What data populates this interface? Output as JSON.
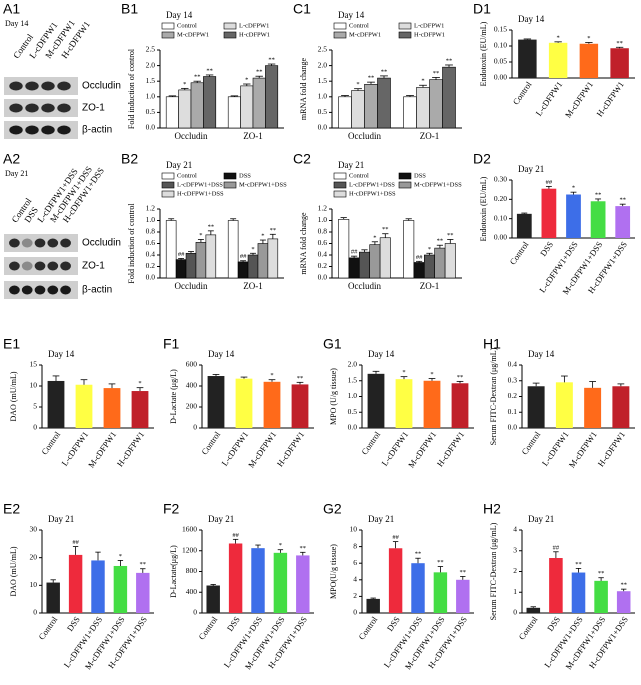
{
  "blots": [
    {
      "panel": "A1",
      "title": "Day 14",
      "lanes": [
        "Control",
        "L-cDFPW1",
        "M-cDFPW1",
        "H-cDFPW1"
      ],
      "bands": [
        "Occludin",
        "ZO-1",
        "β-actin"
      ]
    },
    {
      "panel": "A2",
      "title": "Day 21",
      "lanes": [
        "Control",
        "DSS",
        "L-cDFPW1+DSS",
        "M-cDFPW1+DSS",
        "H-cDFPW1+DSS"
      ],
      "bands": [
        "Occludin",
        "ZO-1",
        "β-actin"
      ]
    }
  ],
  "chart_data": [
    {
      "type": "bar",
      "panel": "B1",
      "title": "Day 14",
      "ylabel": "Fold induction of control",
      "categories": [
        "Occludin",
        "ZO-1"
      ],
      "series": [
        {
          "name": "Control",
          "color": "#ffffff",
          "values": [
            1.0,
            1.0
          ],
          "errors": [
            0.03,
            0.03
          ]
        },
        {
          "name": "L-cDFPW1",
          "color": "#dddddd",
          "values": [
            1.22,
            1.35
          ],
          "errors": [
            0.05,
            0.06
          ],
          "annotations": [
            "*",
            "*"
          ]
        },
        {
          "name": "M-cDFPW1",
          "color": "#aaaaaa",
          "values": [
            1.45,
            1.6
          ],
          "errors": [
            0.05,
            0.06
          ],
          "annotations": [
            "**",
            "**"
          ]
        },
        {
          "name": "H-cDFPW1",
          "color": "#666666",
          "values": [
            1.65,
            2.0
          ],
          "errors": [
            0.05,
            0.05
          ],
          "annotations": [
            "**",
            "**"
          ]
        }
      ],
      "ylim": [
        0,
        2.5
      ],
      "yticks": [
        {
          "value": 0,
          "label": "0.0"
        },
        0.5,
        {
          "value": 1,
          "label": "1.0"
        },
        1.5,
        {
          "value": 2,
          "label": "2.0"
        },
        2.5
      ]
    },
    {
      "type": "bar",
      "panel": "C1",
      "title": "Day 14",
      "ylabel": "mRNA fold change",
      "categories": [
        "Occludin",
        "ZO-1"
      ],
      "series": [
        {
          "name": "Control",
          "color": "#ffffff",
          "values": [
            1.0,
            1.0
          ],
          "errors": [
            0.04,
            0.04
          ]
        },
        {
          "name": "L-cDFPW1",
          "color": "#dddddd",
          "values": [
            1.2,
            1.3
          ],
          "errors": [
            0.06,
            0.07
          ],
          "annotations": [
            "*",
            "*"
          ]
        },
        {
          "name": "M-cDFPW1",
          "color": "#aaaaaa",
          "values": [
            1.4,
            1.55
          ],
          "errors": [
            0.07,
            0.07
          ],
          "annotations": [
            "**",
            "**"
          ]
        },
        {
          "name": "H-cDFPW1",
          "color": "#666666",
          "values": [
            1.6,
            1.95
          ],
          "errors": [
            0.07,
            0.07
          ],
          "annotations": [
            "**",
            "**"
          ]
        }
      ],
      "ylim": [
        0,
        2.5
      ],
      "yticks": [
        {
          "value": 0,
          "label": "0.0"
        },
        0.5,
        {
          "value": 1,
          "label": "1.0"
        },
        1.5,
        {
          "value": 2,
          "label": "2.0"
        },
        2.5
      ]
    },
    {
      "type": "bar",
      "panel": "D1",
      "title": "Day 14",
      "ylabel": "Endotoxin (EU/mL)",
      "categories": [
        "Control",
        "L-cDFPW1",
        "M-cDFPW1",
        "H-cDFPW1"
      ],
      "colors": [
        "#222222",
        "#ffff44",
        "#ff6a1a",
        "#c0202a"
      ],
      "values": [
        0.12,
        0.11,
        0.107,
        0.093
      ],
      "errors": [
        0.002,
        0.003,
        0.004,
        0.003
      ],
      "annotations": [
        null,
        "*",
        "*",
        "**"
      ],
      "ylim": [
        0,
        0.15
      ],
      "yticks": [
        {
          "value": 0,
          "label": "0.00"
        },
        0.05,
        {
          "value": 0.1,
          "label": "0.10"
        },
        0.15
      ]
    },
    {
      "type": "bar",
      "panel": "B2",
      "title": "Day 21",
      "ylabel": "Fold induction of control",
      "categories": [
        "Occludin",
        "ZO-1"
      ],
      "series": [
        {
          "name": "Control",
          "color": "#ffffff",
          "values": [
            1.0,
            1.0
          ],
          "errors": [
            0.03,
            0.03
          ]
        },
        {
          "name": "DSS",
          "color": "#111111",
          "values": [
            0.32,
            0.28
          ],
          "errors": [
            0.02,
            0.02
          ],
          "annotations": [
            "##",
            "##"
          ]
        },
        {
          "name": "L-cDFPW1+DSS",
          "color": "#555555",
          "values": [
            0.43,
            0.4
          ],
          "errors": [
            0.03,
            0.03
          ],
          "annotations": [
            null,
            "*"
          ]
        },
        {
          "name": "M-cDFPW1+DSS",
          "color": "#999999",
          "values": [
            0.62,
            0.6
          ],
          "errors": [
            0.05,
            0.06
          ],
          "annotations": [
            "*",
            "*"
          ]
        },
        {
          "name": "H-cDFPW1+DSS",
          "color": "#dddddd",
          "values": [
            0.75,
            0.68
          ],
          "errors": [
            0.07,
            0.08
          ],
          "annotations": [
            "**",
            "**"
          ]
        }
      ],
      "ylim": [
        0,
        1.2
      ],
      "yticks": [
        {
          "value": 0,
          "label": "0.0"
        },
        0.2,
        0.4,
        0.6,
        0.8,
        {
          "value": 1,
          "label": "1.0"
        },
        1.2
      ]
    },
    {
      "type": "bar",
      "panel": "C2",
      "title": "Day 21",
      "ylabel": "mRNA fold change",
      "categories": [
        "Occludin",
        "ZO-1"
      ],
      "series": [
        {
          "name": "Control",
          "color": "#ffffff",
          "values": [
            1.02,
            1.0
          ],
          "errors": [
            0.03,
            0.03
          ]
        },
        {
          "name": "DSS",
          "color": "#111111",
          "values": [
            0.35,
            0.27
          ],
          "errors": [
            0.03,
            0.02
          ],
          "annotations": [
            "##",
            "##"
          ]
        },
        {
          "name": "L-cDFPW1+DSS",
          "color": "#555555",
          "values": [
            0.45,
            0.4
          ],
          "errors": [
            0.04,
            0.03
          ],
          "annotations": [
            null,
            "*"
          ]
        },
        {
          "name": "M-cDFPW1+DSS",
          "color": "#999999",
          "values": [
            0.58,
            0.52
          ],
          "errors": [
            0.05,
            0.05
          ],
          "annotations": [
            "*",
            "**"
          ]
        },
        {
          "name": "H-cDFPW1+DSS",
          "color": "#dddddd",
          "values": [
            0.7,
            0.6
          ],
          "errors": [
            0.07,
            0.07
          ],
          "annotations": [
            "**",
            "**"
          ]
        }
      ],
      "ylim": [
        0,
        1.2
      ],
      "yticks": [
        {
          "value": 0,
          "label": "0.0"
        },
        0.2,
        0.4,
        0.6,
        0.8,
        {
          "value": 1,
          "label": "1.0"
        },
        1.2
      ]
    },
    {
      "type": "bar",
      "panel": "D2",
      "title": "Day 21",
      "ylabel": "Endotoxin (EU/mL)",
      "categories": [
        "Control",
        "DSS",
        "L-cDFPW1+DSS",
        "M-cDFPW1+DSS",
        "H-cDFPW1+DSS"
      ],
      "colors": [
        "#222222",
        "#ee2a3c",
        "#3d6ee8",
        "#44dd44",
        "#b070f0"
      ],
      "values": [
        0.125,
        0.255,
        0.225,
        0.19,
        0.165
      ],
      "errors": [
        0.004,
        0.012,
        0.012,
        0.012,
        0.01
      ],
      "annotations": [
        null,
        "##",
        "*",
        "**",
        "**"
      ],
      "ylim": [
        0,
        0.3
      ],
      "yticks": [
        {
          "value": 0,
          "label": "0.00"
        },
        {
          "value": 0.1,
          "label": "0.10"
        },
        {
          "value": 0.2,
          "label": "0.20"
        },
        {
          "value": 0.3,
          "label": "0.30"
        }
      ]
    },
    {
      "type": "bar",
      "panel": "E1",
      "title": "Day 14",
      "ylabel": "DAO (mU/mL)",
      "categories": [
        "Control",
        "L-cDFPW1",
        "M-cDFPW1",
        "H-cDFPW1"
      ],
      "colors": [
        "#222222",
        "#ffff44",
        "#ff6a1a",
        "#c0202a"
      ],
      "values": [
        11.2,
        10.3,
        9.5,
        8.8
      ],
      "errors": [
        1.2,
        1.2,
        1.0,
        0.8
      ],
      "annotations": [
        null,
        null,
        null,
        "*"
      ],
      "ylim": [
        0,
        15
      ],
      "yticks": [
        0,
        5,
        10,
        15
      ]
    },
    {
      "type": "bar",
      "panel": "F1",
      "title": "Day 14",
      "ylabel": "D-Lactate (μg/L)",
      "categories": [
        "Control",
        "L-cDFPW1",
        "M-cDFPW1",
        "H-cDFPW1"
      ],
      "colors": [
        "#222222",
        "#ffff44",
        "#ff6a1a",
        "#c0202a"
      ],
      "values": [
        495,
        470,
        440,
        415
      ],
      "errors": [
        15,
        15,
        20,
        20
      ],
      "annotations": [
        null,
        null,
        "*",
        "**"
      ],
      "ylim": [
        0,
        600
      ],
      "yticks": [
        0,
        200,
        400,
        600
      ]
    },
    {
      "type": "bar",
      "panel": "G1",
      "title": "Day 14",
      "ylabel": "MPO (U/g tissue)",
      "categories": [
        "Control",
        "L-cDFPW1",
        "M-cDFPW1",
        "H-cDFPW1"
      ],
      "colors": [
        "#222222",
        "#ffff44",
        "#ff6a1a",
        "#c0202a"
      ],
      "values": [
        1.72,
        1.55,
        1.5,
        1.42
      ],
      "errors": [
        0.08,
        0.08,
        0.07,
        0.06
      ],
      "annotations": [
        null,
        "*",
        "*",
        "**"
      ],
      "ylim": [
        0,
        2
      ],
      "yticks": [
        {
          "value": 0,
          "label": "0.0"
        },
        0.5,
        {
          "value": 1,
          "label": "1.0"
        },
        1.5,
        {
          "value": 2,
          "label": "2.0"
        }
      ]
    },
    {
      "type": "bar",
      "panel": "H1",
      "title": "Day 14",
      "ylabel": "Serum FITC-Dextran (μg/mL)",
      "categories": [
        "Control",
        "L-cDFPW1",
        "M-cDFPW1",
        "H-cDFPW1"
      ],
      "colors": [
        "#222222",
        "#ffff44",
        "#ff6a1a",
        "#c0202a"
      ],
      "values": [
        0.265,
        0.29,
        0.255,
        0.265
      ],
      "errors": [
        0.02,
        0.04,
        0.04,
        0.015
      ],
      "ylim": [
        0,
        0.4
      ],
      "yticks": [
        {
          "value": 0,
          "label": "0.0"
        },
        0.1,
        0.2,
        0.3,
        0.4
      ]
    },
    {
      "type": "bar",
      "panel": "E2",
      "title": "Day 21",
      "ylabel": "DAO (mU/mL)",
      "categories": [
        "Control",
        "DSS",
        "L-cDFPW1+DSS",
        "M-cDFPW1+DSS",
        "H-cDFPW1+DSS"
      ],
      "colors": [
        "#222222",
        "#ee2a3c",
        "#3d6ee8",
        "#44dd44",
        "#b070f0"
      ],
      "values": [
        11,
        21,
        19,
        17,
        14.5
      ],
      "errors": [
        1,
        3,
        3,
        2,
        1.5
      ],
      "annotations": [
        null,
        "##",
        null,
        "*",
        "**"
      ],
      "ylim": [
        0,
        30
      ],
      "yticks": [
        0,
        10,
        20,
        30
      ]
    },
    {
      "type": "bar",
      "panel": "F2",
      "title": "Day 21",
      "ylabel": "D-Lactate(μg/L)",
      "categories": [
        "Control",
        "DSS",
        "L-cDFPW1+DSS",
        "M-cDFPW1+DSS",
        "H-cDFPW1+DSS"
      ],
      "colors": [
        "#222222",
        "#ee2a3c",
        "#3d6ee8",
        "#44dd44",
        "#b070f0"
      ],
      "values": [
        530,
        1340,
        1250,
        1160,
        1110
      ],
      "errors": [
        20,
        80,
        60,
        60,
        60
      ],
      "annotations": [
        null,
        "##",
        null,
        "*",
        "**"
      ],
      "ylim": [
        0,
        1600
      ],
      "yticks": [
        0,
        400,
        800,
        1200,
        1600
      ]
    },
    {
      "type": "bar",
      "panel": "G2",
      "title": "Day 21",
      "ylabel": "MPO(U/g tissue)",
      "categories": [
        "Control",
        "DSS",
        "L-cDFPW1+DSS",
        "M-cDFPW1+DSS",
        "H-cDFPW1+DSS"
      ],
      "colors": [
        "#222222",
        "#ee2a3c",
        "#3d6ee8",
        "#44dd44",
        "#b070f0"
      ],
      "values": [
        1.7,
        7.8,
        6.0,
        4.9,
        4.0
      ],
      "errors": [
        0.1,
        0.8,
        0.6,
        0.7,
        0.4
      ],
      "annotations": [
        null,
        "##",
        "**",
        "**",
        "**"
      ],
      "ylim": [
        0,
        10
      ],
      "yticks": [
        0,
        2,
        4,
        6,
        8,
        10
      ]
    },
    {
      "type": "bar",
      "panel": "H2",
      "title": "Day 21",
      "ylabel": "Serum FITC-Dextran (μg/mL)",
      "categories": [
        "Control",
        "DSS",
        "L-cDFPW1+DSS",
        "M-cDFPW1+DSS",
        "H-cDFPW1+DSS"
      ],
      "colors": [
        "#222222",
        "#ee2a3c",
        "#3d6ee8",
        "#44dd44",
        "#b070f0"
      ],
      "values": [
        0.25,
        2.65,
        1.95,
        1.55,
        1.05
      ],
      "errors": [
        0.05,
        0.3,
        0.2,
        0.15,
        0.1
      ],
      "annotations": [
        null,
        "##",
        "**",
        "**",
        "**"
      ],
      "ylim": [
        0,
        4
      ],
      "yticks": [
        0,
        1,
        2,
        3,
        4
      ]
    }
  ]
}
